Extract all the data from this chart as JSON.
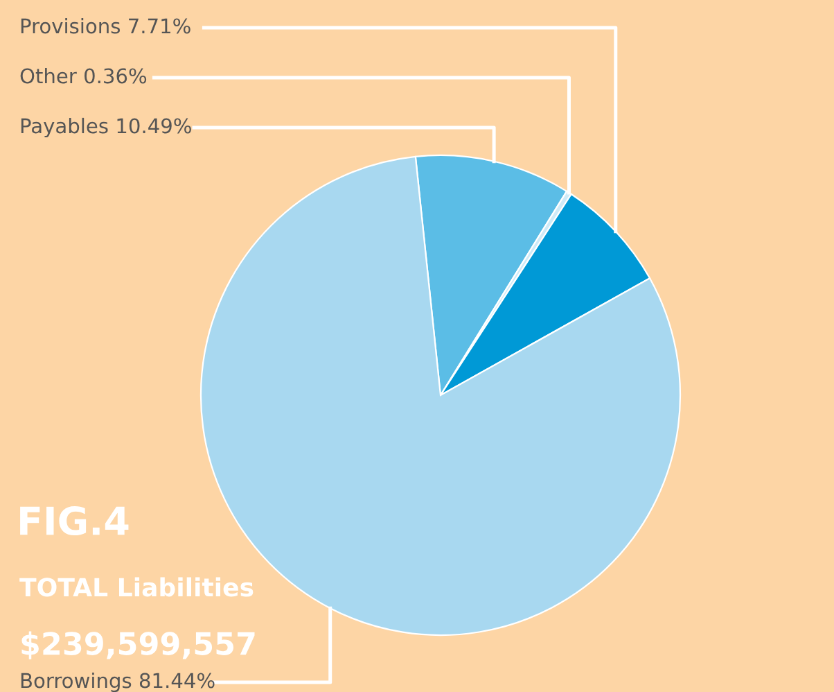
{
  "chart_data": {
    "type": "pie",
    "categories": [
      "Payables 10.49%",
      "Other 0.36%",
      "Provisions 7.71%",
      "Borrowings 81.44%"
    ],
    "values": [
      10.49,
      0.36,
      7.71,
      81.44
    ],
    "colors": [
      "#5bbde6",
      "#cfeaf7",
      "#0099d6",
      "#a8d8f0"
    ],
    "annotations": [
      "FIG.4",
      "TOTAL Liabilities",
      "$239,599,557"
    ]
  }
}
